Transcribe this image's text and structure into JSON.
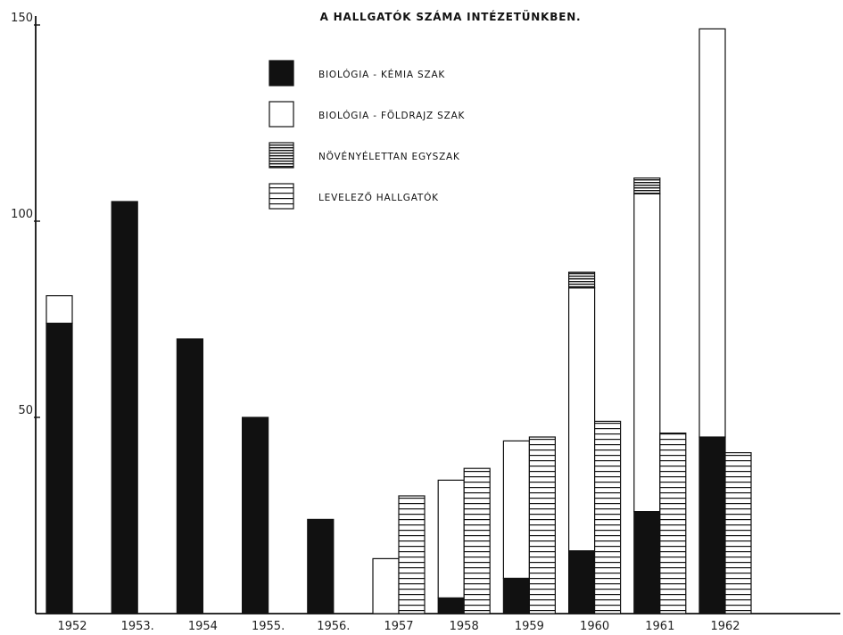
{
  "chart_data": {
    "type": "bar",
    "title": "A HALLGATÓK SZÁMA INTÉZETÜNKBEN.",
    "xlabel": "",
    "ylabel": "",
    "ylim": [
      0,
      150
    ],
    "yticks": [
      "50",
      "100",
      "150"
    ],
    "grid": false,
    "legend_position": "top-center",
    "categories": [
      "1952",
      "1953.",
      "1954",
      "1955.",
      "1956.",
      "1957",
      "1958",
      "1959",
      "1960",
      "1961",
      "1962"
    ],
    "series": [
      {
        "name": "BIOLÓGIA - KÉMIA SZAK",
        "pattern": "solid",
        "color": "#111111",
        "values": [
          74,
          105,
          70,
          50,
          24,
          0,
          4,
          9,
          16,
          26,
          45
        ]
      },
      {
        "name": "BIOLÓGIA - FÖLDRAJZ SZAK",
        "pattern": "empty",
        "color": "#ffffff",
        "values": [
          7,
          0,
          0,
          0,
          0,
          14,
          30,
          35,
          67,
          81,
          104
        ]
      },
      {
        "name": "NÖVÉNYÉLETTAN EGYSZAK",
        "pattern": "dense-horizontal-lines",
        "color": "#111111",
        "values": [
          0,
          0,
          0,
          0,
          0,
          0,
          0,
          0,
          4,
          4,
          0
        ]
      },
      {
        "name": "LEVELEZŐ HALLGATÓK",
        "pattern": "horizontal-lines",
        "color": "#111111",
        "values": [
          0,
          0,
          0,
          0,
          0,
          30,
          37,
          45,
          49,
          46,
          41
        ]
      }
    ]
  }
}
